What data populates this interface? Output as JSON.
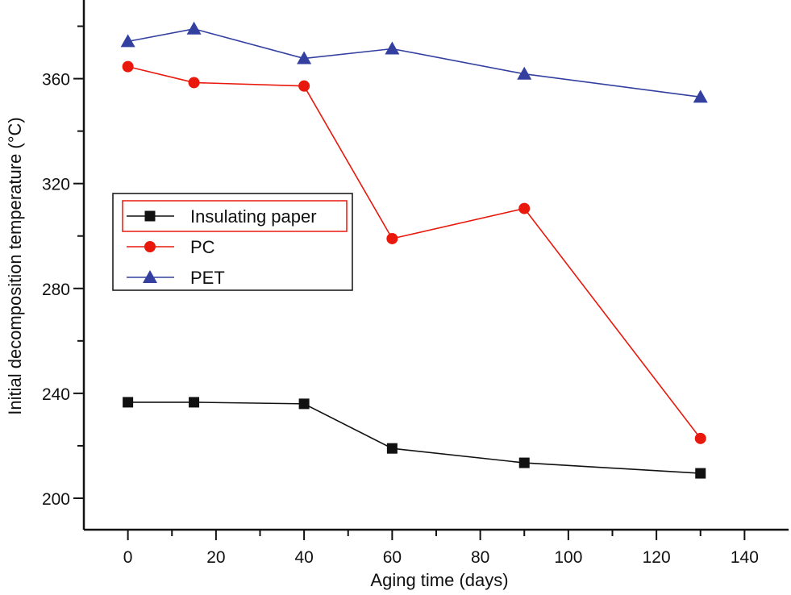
{
  "chart_data": {
    "type": "line",
    "title": "",
    "xlabel": "Aging time (days)",
    "ylabel": "Initial decomposition temperature (°C)",
    "xlim": [
      -10,
      150
    ],
    "ylim": [
      188,
      390
    ],
    "xticks": [
      0,
      20,
      40,
      60,
      80,
      100,
      120,
      140
    ],
    "yticks": [
      200,
      240,
      280,
      320,
      360
    ],
    "xtick_labels": [
      "0",
      "20",
      "40",
      "60",
      "80",
      "100",
      "120",
      "140"
    ],
    "ytick_labels": [
      "200",
      "240",
      "280",
      "320",
      "360"
    ],
    "grid": false,
    "legend_position": "center-left",
    "x": [
      0,
      15,
      40,
      60,
      90,
      130
    ],
    "series": [
      {
        "name": "Insulating paper",
        "marker": "square",
        "color": "#111111",
        "values": [
          236.6,
          236.6,
          236.0,
          219.0,
          213.5,
          209.5
        ]
      },
      {
        "name": "PC",
        "marker": "circle",
        "color": "#e8180c",
        "values": [
          364.6,
          358.5,
          357.2,
          299.0,
          310.5,
          222.8
        ]
      },
      {
        "name": "PET",
        "marker": "triangle",
        "color": "#3340a0",
        "values": [
          374.2,
          379.0,
          367.7,
          371.4,
          361.8,
          353.0
        ]
      }
    ]
  }
}
